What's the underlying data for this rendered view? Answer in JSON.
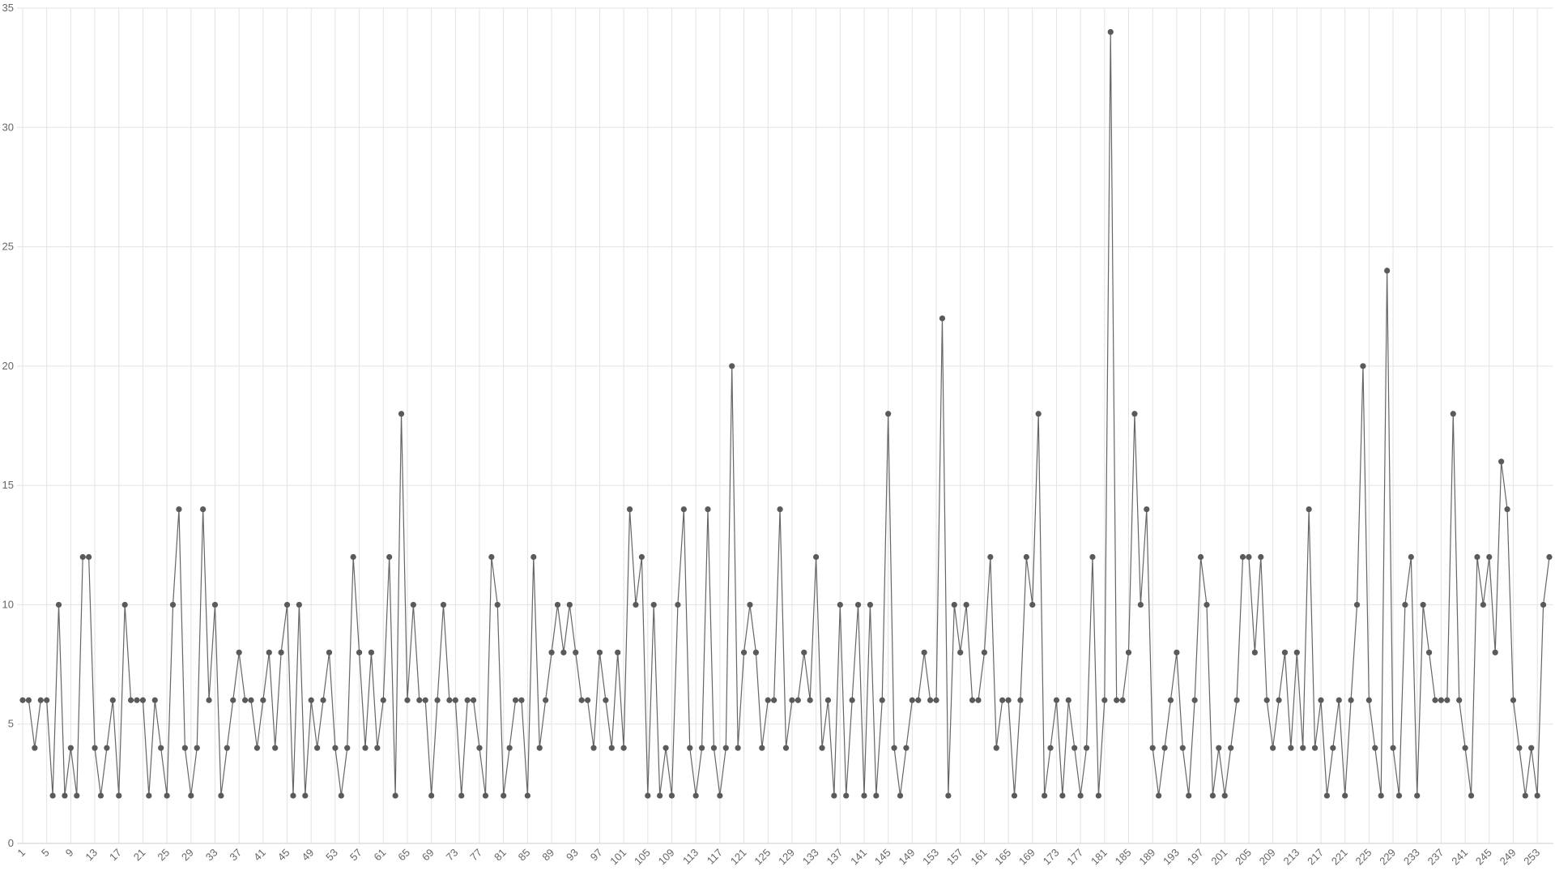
{
  "chart_data": {
    "type": "line",
    "color": "#666666",
    "marker_color": "#5a5a5a",
    "grid": true,
    "categories": [
      1,
      null,
      null,
      null,
      5,
      null,
      null,
      null,
      9,
      null,
      null,
      null,
      13,
      null,
      null,
      null,
      17,
      null,
      null,
      null,
      21,
      null,
      null,
      null,
      25,
      null,
      null,
      null,
      29,
      null,
      null,
      null,
      33,
      null,
      null,
      null,
      37,
      null,
      null,
      null,
      41,
      null,
      null,
      null,
      45,
      null,
      null,
      null,
      49,
      null,
      null,
      null,
      53,
      null,
      null,
      null,
      57,
      null,
      null,
      null,
      61,
      null,
      null,
      null,
      65,
      null,
      null,
      null,
      69,
      null,
      null,
      null,
      73,
      null,
      null,
      null,
      77,
      null,
      null,
      null,
      81,
      null,
      null,
      null,
      85,
      null,
      null,
      null,
      89,
      null,
      null,
      null,
      93,
      null,
      null,
      null,
      97,
      null,
      null,
      null,
      101,
      null,
      null,
      null,
      105,
      null,
      null,
      null,
      109,
      null,
      null,
      null,
      113,
      null,
      null,
      null,
      117,
      null,
      null,
      null,
      121,
      null,
      null,
      null,
      125,
      null,
      null,
      null,
      129,
      null,
      null,
      null,
      133,
      null,
      null,
      null,
      137,
      null,
      null,
      null,
      141,
      null,
      null,
      null,
      145,
      null,
      null,
      null,
      149,
      null,
      null,
      null,
      153,
      null,
      null,
      null,
      157,
      null,
      null,
      null,
      161,
      null,
      null,
      null,
      165,
      null,
      null,
      null,
      169,
      null,
      null,
      null,
      173,
      null,
      null,
      null,
      177,
      null,
      null,
      null,
      181,
      null,
      null,
      null,
      185,
      null,
      null,
      null,
      189,
      null,
      null,
      null,
      193,
      null,
      null,
      null,
      197,
      null,
      null,
      null,
      201,
      null,
      null,
      null,
      205,
      null,
      null,
      null,
      209,
      null,
      null,
      null,
      213,
      null,
      null,
      null,
      217,
      null,
      null,
      null,
      221,
      null,
      null,
      null,
      225,
      null,
      null,
      null,
      229,
      null,
      null,
      null,
      233,
      null,
      null,
      null,
      237,
      null,
      null,
      null,
      241,
      null,
      null,
      null,
      245,
      null,
      null,
      null,
      249,
      null,
      null,
      null,
      253,
      null,
      null
    ],
    "values": [
      6,
      6,
      4,
      6,
      6,
      2,
      10,
      2,
      4,
      2,
      12,
      12,
      4,
      2,
      4,
      6,
      2,
      10,
      6,
      6,
      6,
      2,
      6,
      4,
      2,
      10,
      14,
      4,
      2,
      4,
      14,
      6,
      10,
      2,
      4,
      6,
      8,
      6,
      6,
      4,
      6,
      8,
      4,
      8,
      10,
      2,
      10,
      2,
      6,
      4,
      6,
      8,
      4,
      2,
      4,
      12,
      8,
      4,
      8,
      4,
      6,
      12,
      2,
      18,
      6,
      10,
      6,
      6,
      2,
      6,
      10,
      6,
      6,
      2,
      6,
      6,
      4,
      2,
      12,
      10,
      2,
      4,
      6,
      6,
      2,
      12,
      4,
      6,
      8,
      10,
      8,
      10,
      8,
      6,
      6,
      4,
      8,
      6,
      4,
      8,
      4,
      14,
      10,
      12,
      2,
      10,
      2,
      4,
      2,
      10,
      14,
      4,
      2,
      4,
      14,
      4,
      2,
      4,
      20,
      4,
      8,
      10,
      8,
      4,
      6,
      6,
      14,
      4,
      6,
      6,
      8,
      6,
      12,
      4,
      6,
      2,
      10,
      2,
      6,
      10,
      2,
      10,
      2,
      6,
      18,
      4,
      2,
      4,
      6,
      6,
      8,
      6,
      6,
      22,
      2,
      10,
      8,
      10,
      6,
      6,
      8,
      12,
      4,
      6,
      6,
      2,
      6,
      12,
      10,
      18,
      2,
      4,
      6,
      2,
      6,
      4,
      2,
      4,
      12,
      2,
      6,
      34,
      6,
      6,
      8,
      18,
      10,
      14,
      4,
      2,
      4,
      6,
      8,
      4,
      2,
      6,
      12,
      10,
      2,
      4,
      2,
      4,
      6,
      12,
      12,
      8,
      12,
      6,
      4,
      6,
      8,
      4,
      8,
      4,
      14,
      4,
      6,
      2,
      4,
      6,
      2,
      6,
      10,
      20,
      6,
      4,
      2,
      24,
      4,
      2,
      10,
      12,
      2,
      10,
      8,
      6,
      6,
      6,
      18,
      6,
      4,
      2,
      12,
      10,
      12,
      8,
      16,
      14,
      6,
      4,
      2,
      4,
      2,
      10,
      12
    ],
    "ylim": [
      0,
      35
    ],
    "yticks": [
      0,
      5,
      10,
      15,
      20,
      25,
      30,
      35
    ]
  }
}
